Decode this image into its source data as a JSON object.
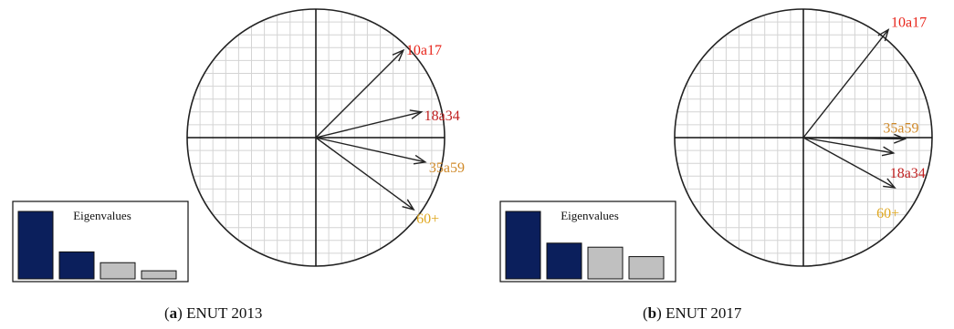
{
  "captions": [
    {
      "letter": "a",
      "text": "ENUT 2013"
    },
    {
      "letter": "b",
      "text": "ENUT 2017"
    }
  ],
  "colors": {
    "label_red": "#e8261c",
    "label_darkred": "#c02020",
    "label_orange": "#d08a2a",
    "label_yellow": "#e0a820",
    "eig_primary": "#0b1f5c",
    "eig_secondary": "#c0c0c0"
  },
  "chart_data": [
    {
      "type": "correlation_circle",
      "xlim": [
        -1,
        1
      ],
      "ylim": [
        -1,
        1
      ],
      "grid": true,
      "vectors": [
        {
          "name": "10a17",
          "x": 0.68,
          "y": 0.68,
          "color": "#e8261c"
        },
        {
          "name": "18a34",
          "x": 0.82,
          "y": 0.2,
          "color": "#c02020"
        },
        {
          "name": "35a59",
          "x": 0.85,
          "y": -0.19,
          "color": "#d08a2a"
        },
        {
          "name": "60+",
          "x": 0.76,
          "y": -0.56,
          "color": "#e0a820"
        }
      ],
      "eigenvalues": {
        "title": "Eigenvalues",
        "values": [
          1.0,
          0.4,
          0.24,
          0.12
        ],
        "highlighted": 2
      }
    },
    {
      "type": "correlation_circle",
      "xlim": [
        -1,
        1
      ],
      "ylim": [
        -1,
        1
      ],
      "grid": true,
      "vectors": [
        {
          "name": "10a17",
          "x": 0.66,
          "y": 0.84,
          "color": "#e8261c"
        },
        {
          "name": "35a59",
          "x": 0.79,
          "y": -0.01,
          "color": "#d08a2a"
        },
        {
          "name": "18a34",
          "x": 0.7,
          "y": -0.12,
          "color": "#c02020"
        },
        {
          "name": "60+",
          "x": 0.71,
          "y": -0.39,
          "color": "#e0a820"
        }
      ],
      "eigenvalues": {
        "title": "Eigenvalues",
        "values": [
          1.0,
          0.53,
          0.47,
          0.33
        ],
        "highlighted": 2
      }
    }
  ]
}
